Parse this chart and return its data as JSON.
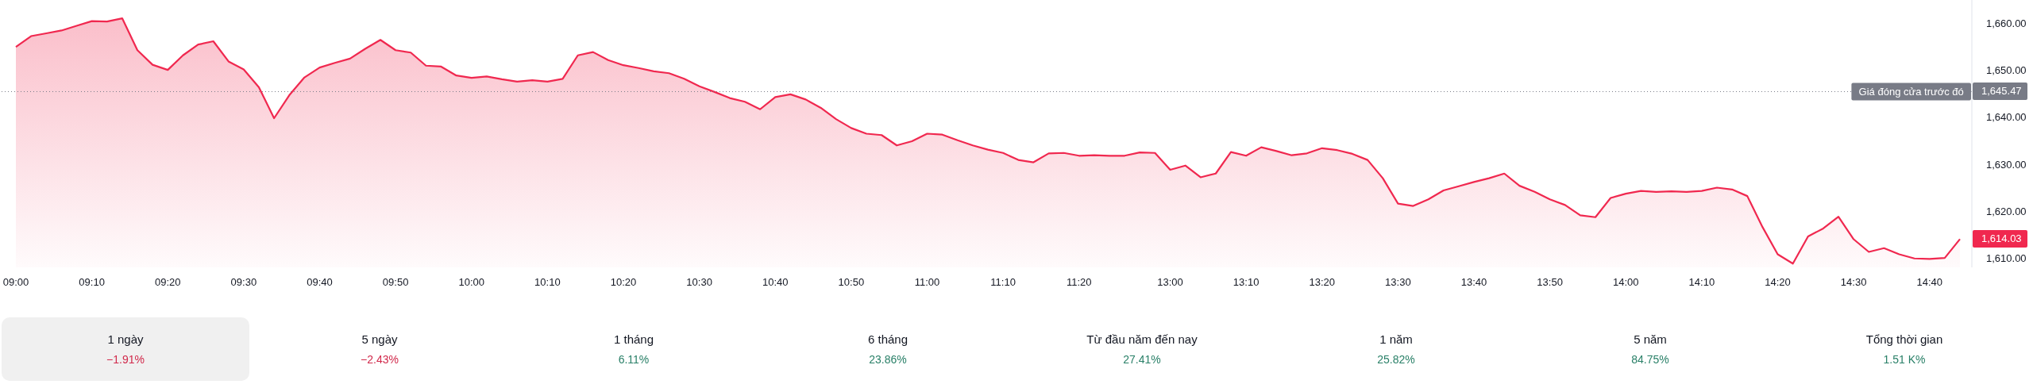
{
  "chart_data": [
    {
      "type": "area",
      "color": "#f0284f",
      "categories": [
        "09:00",
        null,
        null,
        null,
        null,
        "09:10",
        null,
        null,
        null,
        null,
        "09:20",
        null,
        null,
        null,
        null,
        "09:30",
        null,
        null,
        null,
        null,
        "09:40",
        null,
        null,
        null,
        null,
        "09:50",
        null,
        null,
        null,
        null,
        "10:00",
        null,
        null,
        null,
        null,
        "10:10",
        null,
        null,
        null,
        null,
        "10:20",
        null,
        null,
        null,
        null,
        "10:30",
        null,
        null,
        null,
        null,
        "10:40",
        null,
        null,
        null,
        null,
        "10:50",
        null,
        null,
        null,
        null,
        "11:00",
        null,
        null,
        null,
        null,
        "11:10",
        null,
        null,
        null,
        null,
        "11:20",
        null,
        null,
        null,
        null,
        null,
        "13:00",
        null,
        null,
        null,
        null,
        "13:10",
        null,
        null,
        null,
        null,
        "13:20",
        null,
        null,
        null,
        null,
        "13:30",
        null,
        null,
        null,
        null,
        "13:40",
        null,
        null,
        null,
        null,
        "13:50",
        null,
        null,
        null,
        null,
        "14:00",
        null,
        null,
        null,
        null,
        "14:10",
        null,
        null,
        null,
        null,
        "14:20",
        null,
        null,
        null,
        null,
        "14:30",
        null,
        null,
        null,
        null,
        "14:40",
        null,
        null
      ],
      "values": [
        1655.0,
        1657.3,
        1657.9,
        1658.5,
        1659.5,
        1660.5,
        1660.4,
        1661.1,
        1654.3,
        1651.2,
        1650.1,
        1653.2,
        1655.5,
        1656.2,
        1651.9,
        1650.2,
        1646.4,
        1639.8,
        1644.7,
        1648.5,
        1650.6,
        1651.6,
        1652.5,
        1654.6,
        1656.5,
        1654.3,
        1653.8,
        1651.0,
        1650.8,
        1648.9,
        1648.4,
        1648.7,
        1648.1,
        1647.6,
        1647.9,
        1647.6,
        1648.2,
        1653.2,
        1653.9,
        1652.2,
        1651.1,
        1650.5,
        1649.8,
        1649.4,
        1648.2,
        1646.6,
        1645.4,
        1644.1,
        1643.3,
        1641.7,
        1644.3,
        1644.9,
        1643.8,
        1642.0,
        1639.6,
        1637.7,
        1636.5,
        1636.2,
        1634.0,
        1634.9,
        1636.5,
        1636.3,
        1635.1,
        1634.0,
        1633.1,
        1632.4,
        1630.9,
        1630.4,
        1632.3,
        1632.4,
        1631.8,
        1631.9,
        1631.8,
        1631.8,
        1632.5,
        1632.4,
        1628.8,
        1629.7,
        1627.2,
        1628.0,
        1632.6,
        1631.8,
        1633.6,
        1632.8,
        1631.9,
        1632.3,
        1633.4,
        1633.0,
        1632.2,
        1630.9,
        1627.0,
        1621.6,
        1621.1,
        1622.5,
        1624.4,
        1625.3,
        1626.2,
        1627.0,
        1628.0,
        1625.4,
        1624.1,
        1622.5,
        1621.3,
        1619.1,
        1618.7,
        1622.8,
        1623.7,
        1624.3,
        1624.1,
        1624.2,
        1624.1,
        1624.3,
        1625.0,
        1624.6,
        1623.2,
        1616.6,
        1610.8,
        1608.8,
        1614.6,
        1616.3,
        1618.8,
        1614.0,
        1611.3,
        1612.1,
        1610.8,
        1609.9,
        1609.8,
        1610.0,
        1614.03
      ],
      "ylim": [
        1608,
        1665
      ],
      "yticks": [
        {
          "value": 1610,
          "label": "1,610.00"
        },
        {
          "value": 1620,
          "label": "1,620.00"
        },
        {
          "value": 1630,
          "label": "1,630.00"
        },
        {
          "value": 1640,
          "label": "1,640.00"
        },
        {
          "value": 1650,
          "label": "1,650.00"
        },
        {
          "value": 1660,
          "label": "1,660.00"
        }
      ],
      "ref_lines": [
        {
          "axis": "y",
          "value": 1645.47,
          "label": "Giá đóng cửa trước đó",
          "color": "#787b86",
          "line_style": "dotted"
        }
      ],
      "annotations": [
        "1,645.47",
        "1,614.03"
      ]
    },
    {
      "type": "other",
      "categories": [
        "1 ngày",
        "5 ngày",
        "1 tháng",
        "6 tháng",
        "Từ đầu năm đến nay",
        "1 năm",
        "5 năm",
        "Tổng thời gian"
      ],
      "value_labels": [
        "−1.91%",
        "−2.43%",
        "6.11%",
        "23.86%",
        "27.41%",
        "25.82%",
        "84.75%",
        "1.51 K%"
      ],
      "colors": [
        "#d1294b",
        "#d1294b",
        "#2a8068",
        "#2a8068",
        "#2a8068",
        "#2a8068",
        "#2a8068",
        "#2a8068"
      ]
    }
  ]
}
